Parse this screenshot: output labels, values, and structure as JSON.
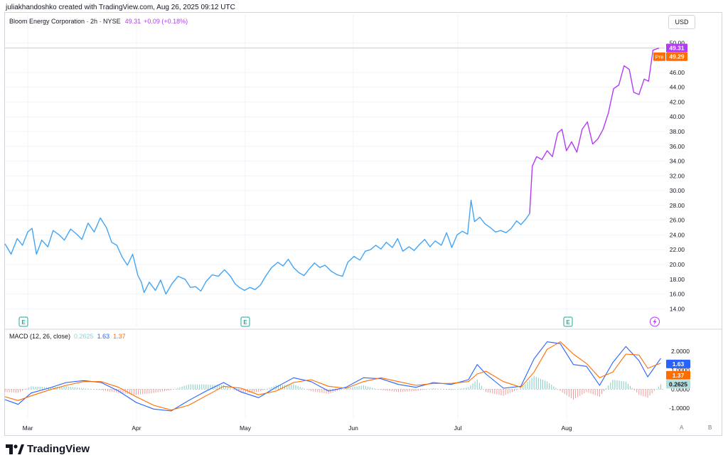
{
  "header": {
    "credit": "juliakhandoshko created with TradingView.com, Aug 26, 2025 09:12 UTC"
  },
  "legend": {
    "symbol": "Bloom Energy Corporation · 2h · NYSE",
    "last": "49.31",
    "change": "+0.09 (+0.18%)"
  },
  "currency_button": "USD",
  "macd_legend": {
    "title": "MACD (12, 26, close)",
    "histogram": "0.2625",
    "macd": "1.63",
    "signal": "1.37"
  },
  "scale_buttons": [
    "A",
    "B"
  ],
  "brand": "TradingView",
  "colors": {
    "price_blue": "#42a5f5",
    "price_purple": "#b33af7",
    "macd_line": "#2962ff",
    "signal_line": "#ff6d00",
    "hist_up": "#26a69a",
    "hist_down": "#ef5350",
    "premarket": "#ff6d00"
  },
  "chart_data": [
    {
      "type": "line",
      "title": "Bloom Energy Corporation · 2h · NYSE",
      "x_tick_labels": [
        "Mar",
        "Apr",
        "May",
        "Jun",
        "Jul",
        "Aug"
      ],
      "y_tick_labels": [
        "14.00",
        "16.00",
        "18.00",
        "20.00",
        "22.00",
        "24.00",
        "26.00",
        "28.00",
        "30.00",
        "32.00",
        "34.00",
        "36.00",
        "38.00",
        "40.00",
        "42.00",
        "44.00",
        "46.00",
        "50.00"
      ],
      "ylim": [
        12.3,
        50.8
      ],
      "grid": true,
      "last_price_label": "49.31",
      "premarket_label": {
        "tag": "Pre",
        "value": "49.29"
      },
      "event_markers": [
        "E",
        "E",
        "E",
        "lightning"
      ],
      "series": [
        {
          "values": [
            [
              0,
              22.8
            ],
            [
              0.7,
              21.4
            ],
            [
              1.4,
              23.5
            ],
            [
              2,
              22.6
            ],
            [
              2.6,
              24.4
            ],
            [
              3.1,
              24.9
            ],
            [
              3.6,
              21.4
            ],
            [
              4.2,
              23.3
            ],
            [
              4.9,
              22.4
            ],
            [
              5.5,
              24.6
            ],
            [
              6.2,
              24.0
            ],
            [
              6.8,
              23.3
            ],
            [
              7.5,
              24.8
            ],
            [
              8.2,
              24.1
            ],
            [
              8.8,
              23.4
            ],
            [
              9.5,
              25.6
            ],
            [
              10.2,
              24.4
            ],
            [
              10.9,
              26.3
            ],
            [
              11.6,
              25.0
            ],
            [
              12.2,
              23.0
            ],
            [
              12.8,
              22.6
            ],
            [
              13.4,
              21.0
            ],
            [
              14,
              19.9
            ],
            [
              14.6,
              21.4
            ],
            [
              15.2,
              18.5
            ],
            [
              15.6,
              17.6
            ],
            [
              15.9,
              16.2
            ],
            [
              16.5,
              17.6
            ],
            [
              17.2,
              16.5
            ],
            [
              17.8,
              17.9
            ],
            [
              18.4,
              16.0
            ],
            [
              19.1,
              17.4
            ],
            [
              19.8,
              18.4
            ],
            [
              20.6,
              18.0
            ],
            [
              21.2,
              16.9
            ],
            [
              21.8,
              17.0
            ],
            [
              22.4,
              16.4
            ],
            [
              23.0,
              17.7
            ],
            [
              23.7,
              18.6
            ],
            [
              24.4,
              18.4
            ],
            [
              25.1,
              19.3
            ],
            [
              25.8,
              18.4
            ],
            [
              26.3,
              17.4
            ],
            [
              26.8,
              16.9
            ],
            [
              27.4,
              16.5
            ],
            [
              28.0,
              16.9
            ],
            [
              28.6,
              16.6
            ],
            [
              29.2,
              17.2
            ],
            [
              29.8,
              18.4
            ],
            [
              30.5,
              19.6
            ],
            [
              31.2,
              20.3
            ],
            [
              31.8,
              19.8
            ],
            [
              32.4,
              20.7
            ],
            [
              33.0,
              19.6
            ],
            [
              33.6,
              18.9
            ],
            [
              34.2,
              18.5
            ],
            [
              34.8,
              19.4
            ],
            [
              35.4,
              20.2
            ],
            [
              36.0,
              19.6
            ],
            [
              36.6,
              19.9
            ],
            [
              37.3,
              19.1
            ],
            [
              38.0,
              18.6
            ],
            [
              38.6,
              18.4
            ],
            [
              39.2,
              20.3
            ],
            [
              39.9,
              21.1
            ],
            [
              40.6,
              20.6
            ],
            [
              41.2,
              21.8
            ],
            [
              41.8,
              22.0
            ],
            [
              42.4,
              22.6
            ],
            [
              43.0,
              22.1
            ],
            [
              43.6,
              23.0
            ],
            [
              44.3,
              22.3
            ],
            [
              44.9,
              23.5
            ],
            [
              45.5,
              21.8
            ],
            [
              46.2,
              22.4
            ],
            [
              46.8,
              21.9
            ],
            [
              47.4,
              22.7
            ],
            [
              48.0,
              23.4
            ],
            [
              48.6,
              22.4
            ],
            [
              49.2,
              23.2
            ],
            [
              49.9,
              22.6
            ],
            [
              50.5,
              24.3
            ],
            [
              51.1,
              22.3
            ],
            [
              51.7,
              24.0
            ],
            [
              52.3,
              24.5
            ],
            [
              52.9,
              24.1
            ],
            [
              53.3,
              28.7
            ],
            [
              53.7,
              25.8
            ],
            [
              54.3,
              26.4
            ],
            [
              54.9,
              25.5
            ],
            [
              55.5,
              25.0
            ],
            [
              56.1,
              24.4
            ],
            [
              56.7,
              24.6
            ],
            [
              57.3,
              24.3
            ],
            [
              57.9,
              24.9
            ],
            [
              58.5,
              25.9
            ],
            [
              59.0,
              25.4
            ],
            [
              59.6,
              26.2
            ],
            [
              60.0,
              26.9
            ]
          ]
        },
        {
          "values": [
            [
              60.0,
              26.9
            ],
            [
              60.3,
              33.3
            ],
            [
              60.8,
              34.6
            ],
            [
              61.4,
              34.2
            ],
            [
              62.0,
              35.4
            ],
            [
              62.6,
              34.6
            ],
            [
              63.2,
              37.8
            ],
            [
              63.7,
              38.3
            ],
            [
              64.2,
              35.4
            ],
            [
              64.8,
              36.6
            ],
            [
              65.4,
              35.2
            ],
            [
              66.0,
              38.3
            ],
            [
              66.6,
              39.3
            ],
            [
              67.2,
              36.3
            ],
            [
              67.8,
              37.0
            ],
            [
              68.4,
              38.3
            ],
            [
              69.0,
              40.5
            ],
            [
              69.6,
              43.8
            ],
            [
              70.2,
              44.3
            ],
            [
              70.8,
              46.9
            ],
            [
              71.4,
              46.4
            ],
            [
              71.9,
              43.3
            ],
            [
              72.5,
              43.0
            ],
            [
              73.1,
              45.1
            ],
            [
              73.6,
              44.8
            ],
            [
              74.1,
              49.0
            ],
            [
              74.8,
              49.31
            ]
          ]
        }
      ]
    },
    {
      "type": "line",
      "title": "MACD (12, 26, close)",
      "y_tick_labels": [
        "2.0000",
        "1.0000",
        "0.0000",
        "-1.0000"
      ],
      "ylim": [
        -1.6,
        2.6
      ],
      "series": [
        {
          "name": "MACD",
          "values": [
            [
              0,
              -0.55
            ],
            [
              1.5,
              -0.8
            ],
            [
              3,
              -0.2
            ],
            [
              5,
              0.05
            ],
            [
              7,
              0.35
            ],
            [
              9,
              0.45
            ],
            [
              11,
              0.35
            ],
            [
              13,
              -0.1
            ],
            [
              15,
              -0.7
            ],
            [
              17,
              -1.05
            ],
            [
              19,
              -1.15
            ],
            [
              21,
              -0.6
            ],
            [
              23,
              -0.1
            ],
            [
              25,
              0.35
            ],
            [
              27,
              -0.15
            ],
            [
              29,
              -0.45
            ],
            [
              31,
              0.1
            ],
            [
              33,
              0.6
            ],
            [
              35,
              0.4
            ],
            [
              37,
              -0.1
            ],
            [
              39,
              0.1
            ],
            [
              41,
              0.6
            ],
            [
              43,
              0.55
            ],
            [
              45,
              0.25
            ],
            [
              47,
              0.1
            ],
            [
              49,
              0.35
            ],
            [
              51,
              0.25
            ],
            [
              53,
              0.5
            ],
            [
              54,
              1.3
            ],
            [
              55,
              0.8
            ],
            [
              57,
              0.05
            ],
            [
              59,
              0.15
            ],
            [
              60.5,
              1.6
            ],
            [
              62,
              2.5
            ],
            [
              63.5,
              2.4
            ],
            [
              65,
              1.3
            ],
            [
              66.5,
              1.2
            ],
            [
              68,
              0.2
            ],
            [
              69.5,
              1.4
            ],
            [
              71,
              2.25
            ],
            [
              72.5,
              1.5
            ],
            [
              73.5,
              0.65
            ],
            [
              75,
              1.63
            ]
          ]
        },
        {
          "name": "Signal",
          "values": [
            [
              0,
              -0.4
            ],
            [
              1.5,
              -0.6
            ],
            [
              3,
              -0.35
            ],
            [
              5,
              -0.05
            ],
            [
              7,
              0.2
            ],
            [
              9,
              0.4
            ],
            [
              11,
              0.4
            ],
            [
              13,
              0.1
            ],
            [
              15,
              -0.4
            ],
            [
              17,
              -0.85
            ],
            [
              19,
              -1.1
            ],
            [
              21,
              -0.85
            ],
            [
              23,
              -0.35
            ],
            [
              25,
              0.15
            ],
            [
              27,
              0.05
            ],
            [
              29,
              -0.3
            ],
            [
              31,
              -0.1
            ],
            [
              33,
              0.35
            ],
            [
              35,
              0.5
            ],
            [
              37,
              0.15
            ],
            [
              39,
              0.05
            ],
            [
              41,
              0.4
            ],
            [
              43,
              0.6
            ],
            [
              45,
              0.4
            ],
            [
              47,
              0.2
            ],
            [
              49,
              0.3
            ],
            [
              51,
              0.3
            ],
            [
              53,
              0.4
            ],
            [
              54,
              0.8
            ],
            [
              55,
              0.95
            ],
            [
              57,
              0.4
            ],
            [
              59,
              0.1
            ],
            [
              60.5,
              0.9
            ],
            [
              62,
              2.1
            ],
            [
              63.5,
              2.5
            ],
            [
              65,
              1.85
            ],
            [
              66.5,
              1.35
            ],
            [
              68,
              0.6
            ],
            [
              69.5,
              0.9
            ],
            [
              71,
              1.85
            ],
            [
              72.5,
              1.8
            ],
            [
              73.5,
              1.1
            ],
            [
              75,
              1.37
            ]
          ]
        },
        {
          "name": "Histogram",
          "values": [
            [
              0,
              -0.15
            ],
            [
              1.5,
              -0.2
            ],
            [
              3,
              0.15
            ],
            [
              5,
              0.1
            ],
            [
              7,
              0.15
            ],
            [
              9,
              0.05
            ],
            [
              11,
              -0.05
            ],
            [
              13,
              -0.2
            ],
            [
              15,
              -0.3
            ],
            [
              17,
              -0.2
            ],
            [
              19,
              -0.05
            ],
            [
              21,
              0.25
            ],
            [
              23,
              0.25
            ],
            [
              25,
              0.2
            ],
            [
              27,
              -0.2
            ],
            [
              29,
              -0.15
            ],
            [
              31,
              0.2
            ],
            [
              33,
              0.25
            ],
            [
              35,
              -0.1
            ],
            [
              37,
              -0.25
            ],
            [
              39,
              0.05
            ],
            [
              41,
              0.2
            ],
            [
              43,
              -0.05
            ],
            [
              45,
              -0.15
            ],
            [
              47,
              -0.1
            ],
            [
              49,
              0.05
            ],
            [
              51,
              -0.05
            ],
            [
              53,
              0.1
            ],
            [
              54,
              0.5
            ],
            [
              55,
              -0.15
            ],
            [
              57,
              -0.35
            ],
            [
              59,
              0.05
            ],
            [
              60.5,
              0.7
            ],
            [
              62,
              0.4
            ],
            [
              63.5,
              -0.1
            ],
            [
              65,
              -0.55
            ],
            [
              66.5,
              -0.15
            ],
            [
              68,
              -0.4
            ],
            [
              69.5,
              0.5
            ],
            [
              71,
              0.4
            ],
            [
              72.5,
              -0.3
            ],
            [
              73.5,
              -0.45
            ],
            [
              75,
              0.2625
            ]
          ]
        }
      ],
      "labels": {
        "macd": "1.63",
        "signal": "1.37",
        "histogram": "0.2625"
      }
    }
  ]
}
